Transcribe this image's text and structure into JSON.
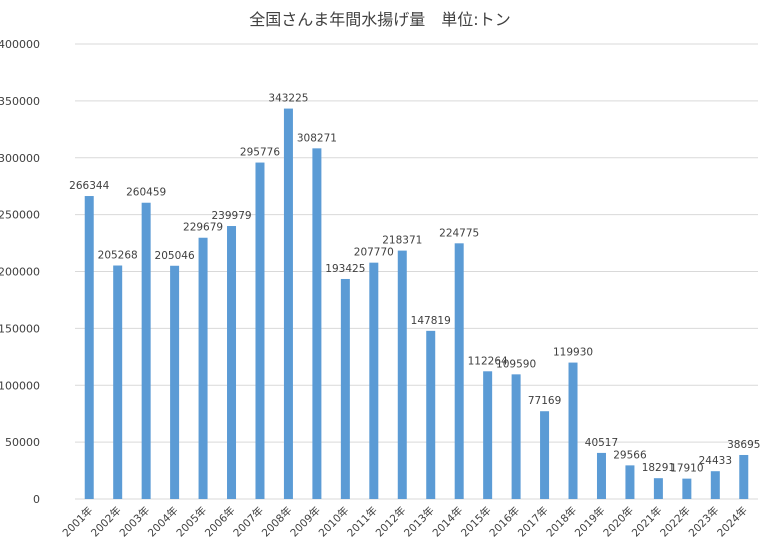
{
  "chart_data": {
    "type": "bar",
    "title": "全国さんま年間水揚げ量　単位:トン",
    "categories": [
      "2001年",
      "2002年",
      "2003年",
      "2004年",
      "2005年",
      "2006年",
      "2007年",
      "2008年",
      "2009年",
      "2010年",
      "2011年",
      "2012年",
      "2013年",
      "2014年",
      "2015年",
      "2016年",
      "2017年",
      "2018年",
      "2019年",
      "2020年",
      "2021年",
      "2022年",
      "2023年",
      "2024年"
    ],
    "values": [
      266344,
      205268,
      260459,
      205046,
      229679,
      239979,
      295776,
      343225,
      308271,
      193425,
      207770,
      218371,
      147819,
      224775,
      112264,
      109590,
      77169,
      119930,
      40517,
      29566,
      18291,
      17910,
      24433,
      38695
    ],
    "ylim": [
      0,
      400000
    ],
    "yticks": [
      0,
      50000,
      100000,
      150000,
      200000,
      250000,
      300000,
      350000,
      400000
    ],
    "grid": true,
    "legend": "none",
    "xlabel": "",
    "ylabel": "",
    "bar_color": "#5b9bd5",
    "grid_color": "#d9d9d9"
  }
}
